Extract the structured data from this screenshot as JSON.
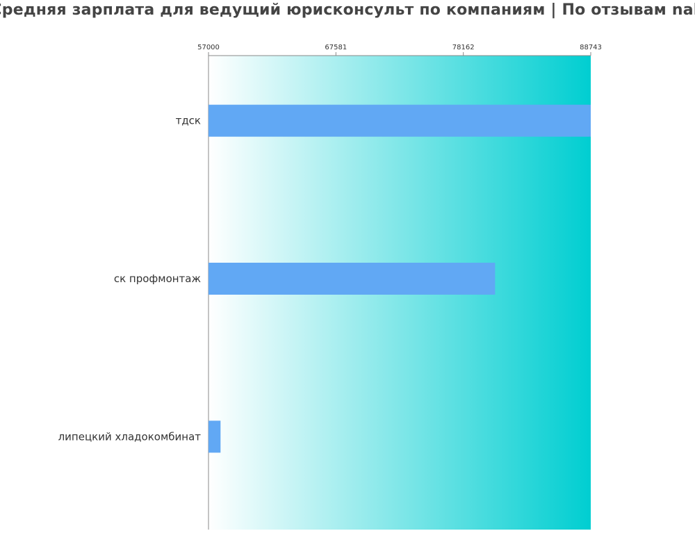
{
  "colors": {
    "bar": "#61a8f4",
    "gradient_start": "#ffffff",
    "gradient_end": "#00ced1",
    "axis": "#888888",
    "text": "#333333",
    "title": "#444444"
  },
  "chart_data": {
    "type": "bar",
    "orientation": "horizontal",
    "title": "Средняя зарплата для ведущий юрисконсульт по компаниям  | По отзывам nah",
    "xlabel": "",
    "ylabel": "",
    "xlim": [
      57000,
      88743
    ],
    "x_ticks": [
      "57000",
      "67581",
      "78162",
      "88743"
    ],
    "x_tick_values": [
      57000,
      67581,
      78162,
      88743
    ],
    "x_axis_position": "top",
    "grid": false,
    "legend": "none",
    "categories": [
      "тдск",
      "ск профмонтаж",
      "липецкий хладокомбинат"
    ],
    "values": [
      88743,
      80800,
      58000
    ]
  }
}
